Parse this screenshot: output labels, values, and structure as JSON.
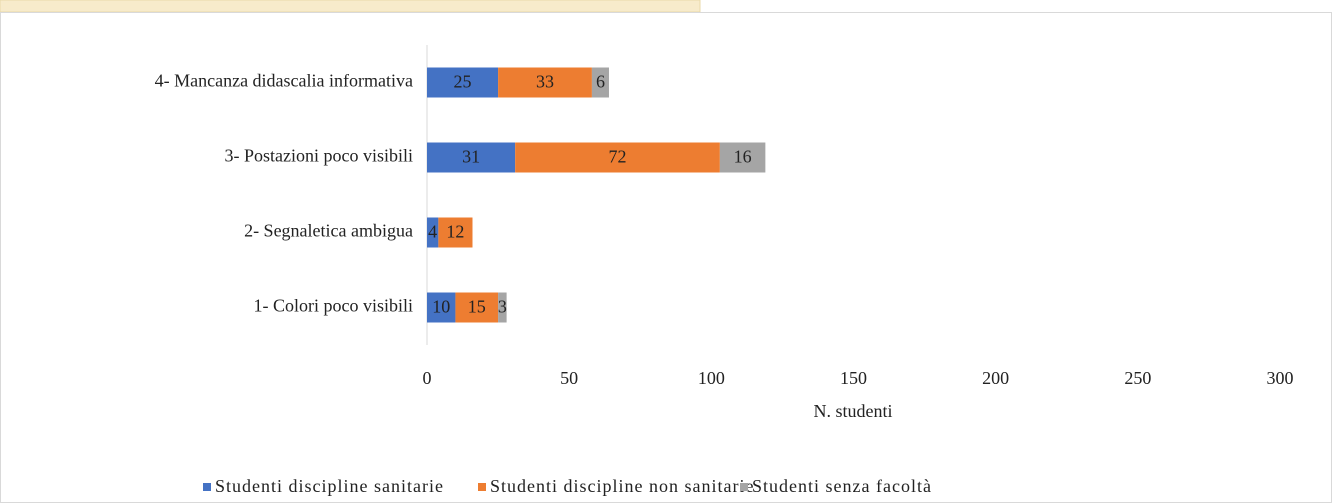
{
  "chart_data": {
    "type": "bar",
    "orientation": "horizontal",
    "stacked": true,
    "x_label": "N. studenti",
    "categories": [
      "4- Mancanza didascalia informativa",
      "3- Postazioni poco visibili",
      "2- Segnaletica ambigua",
      "1- Colori poco visibili"
    ],
    "series": [
      {
        "name": "Studenti discipline sanitarie",
        "color": "#4472c4",
        "values": [
          25,
          31,
          4,
          10
        ]
      },
      {
        "name": "Studenti discipline non sanitarie",
        "color": "#ed7d31",
        "values": [
          33,
          72,
          12,
          15
        ]
      },
      {
        "name": "Studenti senza facoltà",
        "color": "#a5a5a5",
        "values": [
          6,
          16,
          null,
          3
        ]
      }
    ],
    "xlim": [
      0,
      300
    ],
    "xticks": [
      0,
      50,
      100,
      150,
      200,
      250,
      300
    ],
    "grid": false,
    "legend": "bottom"
  }
}
